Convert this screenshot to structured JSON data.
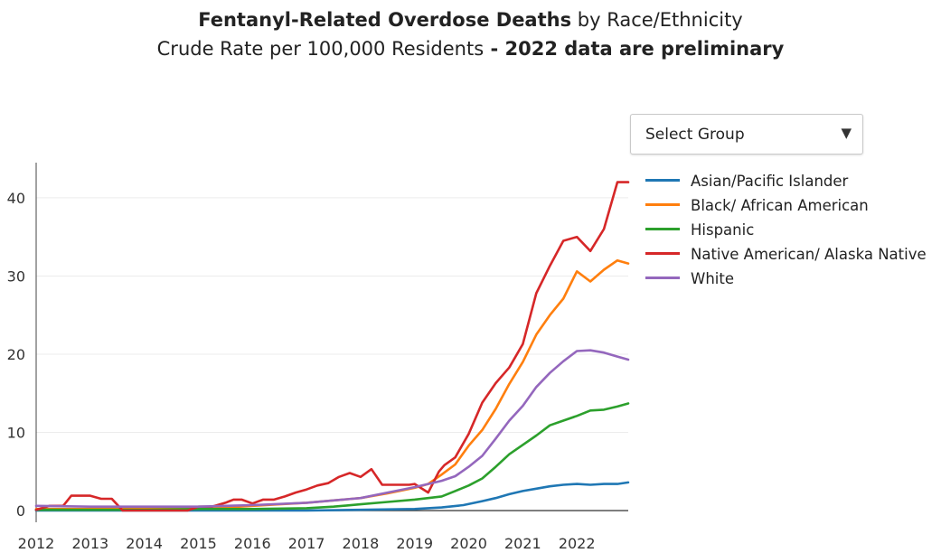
{
  "title": {
    "bold_part": "Fentanyl-Related Overdose Deaths",
    "regular_part": " by Race/Ethnicity",
    "subtitle_regular": "Crude Rate per 100,000 Residents",
    "subtitle_bold": " - 2022 data are preliminary"
  },
  "select": {
    "label": "Select Group",
    "arrow": "▼"
  },
  "chart_data": {
    "type": "line",
    "x_ticks": [
      "2012",
      "2013",
      "2014",
      "2015",
      "2016",
      "2017",
      "2018",
      "2019",
      "2020",
      "2021",
      "2022"
    ],
    "y_ticks": [
      "0",
      "10",
      "20",
      "30",
      "40"
    ],
    "xlim": [
      2012,
      2022.95
    ],
    "ylim": [
      -1.5,
      44.5
    ],
    "grid": true,
    "legend_position": "right",
    "series": [
      {
        "name": "Asian/Pacific Islander",
        "color": "#1f77b4",
        "x": [
          2012.0,
          2013.0,
          2014.0,
          2015.0,
          2016.0,
          2017.0,
          2018.0,
          2019.0,
          2019.5,
          2019.9,
          2020.25,
          2020.5,
          2020.75,
          2021.0,
          2021.25,
          2021.5,
          2021.75,
          2022.0,
          2022.25,
          2022.5,
          2022.75,
          2022.95
        ],
        "y": [
          0.0,
          0.0,
          0.0,
          0.0,
          0.0,
          0.0,
          0.1,
          0.2,
          0.4,
          0.7,
          1.2,
          1.6,
          2.1,
          2.5,
          2.8,
          3.1,
          3.3,
          3.4,
          3.3,
          3.4,
          3.4,
          3.6
        ]
      },
      {
        "name": "Black/ African American",
        "color": "#ff7f0e",
        "x": [
          2012.0,
          2013.0,
          2014.0,
          2015.0,
          2015.5,
          2016.0,
          2016.5,
          2017.0,
          2017.5,
          2018.0,
          2018.5,
          2019.0,
          2019.25,
          2019.5,
          2019.75,
          2020.0,
          2020.25,
          2020.5,
          2020.75,
          2021.0,
          2021.25,
          2021.5,
          2021.75,
          2022.0,
          2022.25,
          2022.5,
          2022.75,
          2022.95
        ],
        "y": [
          0.2,
          0.2,
          0.3,
          0.3,
          0.4,
          0.6,
          0.8,
          1.0,
          1.3,
          1.6,
          2.2,
          2.9,
          3.4,
          4.6,
          5.9,
          8.3,
          10.3,
          13.0,
          16.2,
          19.0,
          22.5,
          25.0,
          27.1,
          30.6,
          29.3,
          30.8,
          32.0,
          31.6
        ]
      },
      {
        "name": "Hispanic",
        "color": "#2ca02c",
        "x": [
          2012.0,
          2013.0,
          2014.0,
          2015.0,
          2016.0,
          2017.0,
          2017.5,
          2018.0,
          2018.5,
          2019.0,
          2019.25,
          2019.5,
          2019.75,
          2020.0,
          2020.25,
          2020.5,
          2020.75,
          2021.0,
          2021.25,
          2021.5,
          2021.75,
          2022.0,
          2022.25,
          2022.5,
          2022.75,
          2022.95
        ],
        "y": [
          0.1,
          0.1,
          0.1,
          0.2,
          0.2,
          0.3,
          0.5,
          0.8,
          1.1,
          1.4,
          1.6,
          1.8,
          2.5,
          3.2,
          4.1,
          5.6,
          7.2,
          8.4,
          9.6,
          10.9,
          11.5,
          12.1,
          12.8,
          12.9,
          13.3,
          13.7
        ]
      },
      {
        "name": "Native American/ Alaska Native",
        "color": "#d62728",
        "x": [
          2012.0,
          2012.25,
          2012.5,
          2012.65,
          2012.8,
          2013.0,
          2013.2,
          2013.4,
          2013.6,
          2013.8,
          2014.0,
          2014.5,
          2014.8,
          2015.0,
          2015.25,
          2015.5,
          2015.65,
          2015.8,
          2016.0,
          2016.2,
          2016.4,
          2016.6,
          2016.8,
          2017.0,
          2017.2,
          2017.4,
          2017.6,
          2017.8,
          2018.0,
          2018.2,
          2018.4,
          2018.55,
          2018.75,
          2018.9,
          2019.0,
          2019.25,
          2019.45,
          2019.55,
          2019.75,
          2020.0,
          2020.25,
          2020.5,
          2020.75,
          2021.0,
          2021.25,
          2021.5,
          2021.75,
          2022.0,
          2022.25,
          2022.5,
          2022.75,
          2022.95
        ],
        "y": [
          0.1,
          0.6,
          0.6,
          1.9,
          1.9,
          1.9,
          1.5,
          1.5,
          0.0,
          0.0,
          0.0,
          0.0,
          0.0,
          0.5,
          0.5,
          1.0,
          1.4,
          1.4,
          0.9,
          1.4,
          1.4,
          1.8,
          2.3,
          2.7,
          3.2,
          3.5,
          4.3,
          4.8,
          4.3,
          5.3,
          3.3,
          3.3,
          3.3,
          3.3,
          3.4,
          2.3,
          5.0,
          5.8,
          6.8,
          9.8,
          13.8,
          16.3,
          18.3,
          21.3,
          27.8,
          31.3,
          34.5,
          35.0,
          33.2,
          36.0,
          42.0,
          42.0
        ]
      },
      {
        "name": "White",
        "color": "#9467bd",
        "x": [
          2012.0,
          2013.0,
          2014.0,
          2015.0,
          2016.0,
          2017.0,
          2017.5,
          2018.0,
          2018.5,
          2019.0,
          2019.25,
          2019.5,
          2019.75,
          2020.0,
          2020.25,
          2020.5,
          2020.75,
          2021.0,
          2021.25,
          2021.5,
          2021.75,
          2022.0,
          2022.25,
          2022.5,
          2022.75,
          2022.95
        ],
        "y": [
          0.6,
          0.5,
          0.5,
          0.5,
          0.7,
          1.0,
          1.3,
          1.6,
          2.3,
          3.0,
          3.4,
          3.8,
          4.4,
          5.6,
          7.0,
          9.2,
          11.5,
          13.4,
          15.8,
          17.6,
          19.1,
          20.4,
          20.5,
          20.2,
          19.7,
          19.3
        ]
      }
    ]
  }
}
